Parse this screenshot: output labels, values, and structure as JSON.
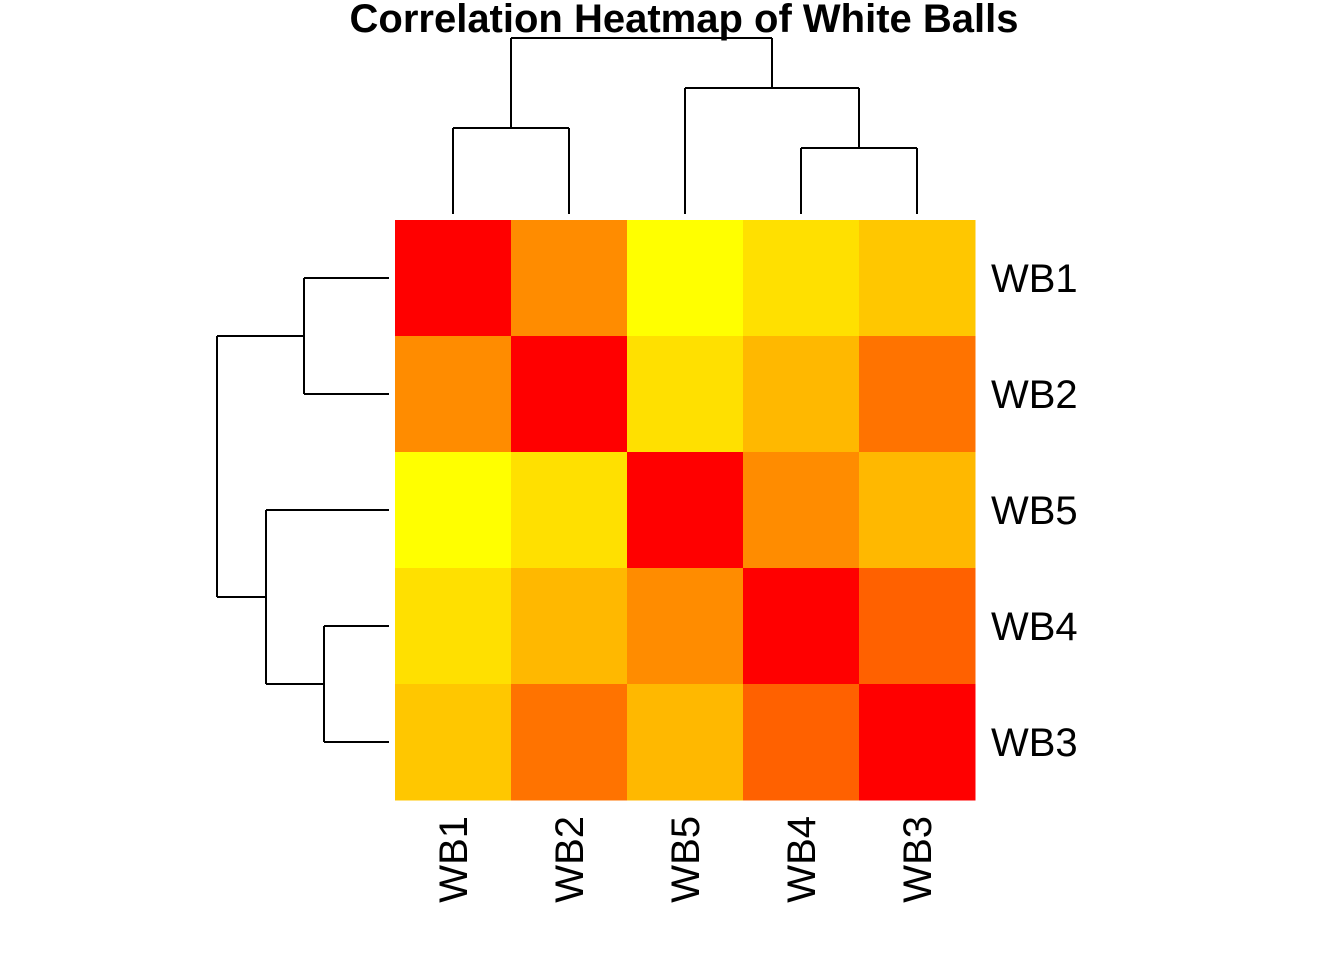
{
  "chart_data": {
    "type": "heatmap",
    "title": "Correlation Heatmap of White Balls",
    "xlabel": "",
    "ylabel": "",
    "row_labels": [
      "WB1",
      "WB2",
      "WB5",
      "WB4",
      "WB3"
    ],
    "col_labels": [
      "WB1",
      "WB2",
      "WB5",
      "WB4",
      "WB3"
    ],
    "values": [
      [
        1.0,
        0.45,
        0.0,
        0.12,
        0.22
      ],
      [
        0.45,
        1.0,
        0.12,
        0.28,
        0.55
      ],
      [
        0.0,
        0.12,
        1.0,
        0.45,
        0.28
      ],
      [
        0.12,
        0.28,
        0.45,
        1.0,
        0.62
      ],
      [
        0.22,
        0.55,
        0.28,
        0.62,
        1.0
      ]
    ],
    "color_scale": [
      "#FFFF00",
      "#FF0000"
    ],
    "value_range": [
      0,
      1
    ],
    "row_dendrogram": {
      "children": [
        {
          "children": [
            "WB1",
            "WB2"
          ]
        },
        {
          "children": [
            "WB5",
            {
              "children": [
                "WB4",
                "WB3"
              ]
            }
          ]
        }
      ]
    },
    "col_dendrogram": {
      "children": [
        {
          "children": [
            "WB1",
            "WB2"
          ]
        },
        {
          "children": [
            "WB5",
            {
              "children": [
                "WB4",
                "WB3"
              ]
            }
          ]
        }
      ]
    }
  }
}
